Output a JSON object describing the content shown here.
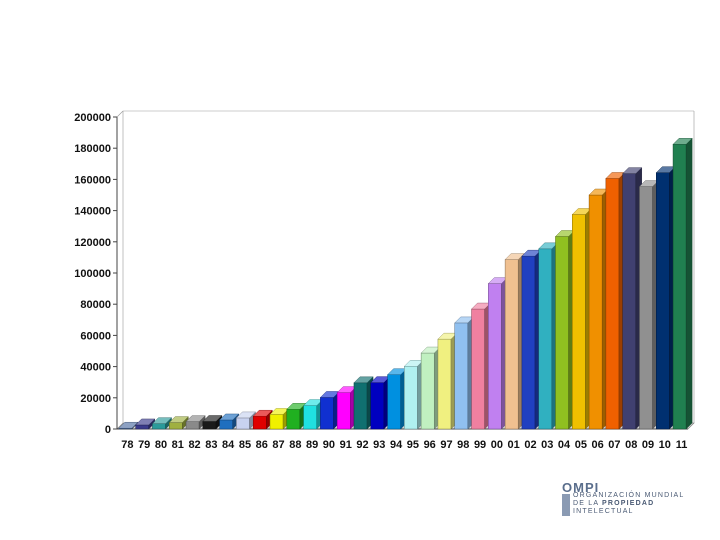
{
  "chart_data": {
    "type": "bar",
    "title": "",
    "xlabel": "",
    "ylabel": "",
    "ylim": [
      0,
      200000
    ],
    "yticks": [
      0,
      20000,
      40000,
      60000,
      80000,
      100000,
      120000,
      140000,
      160000,
      180000,
      200000
    ],
    "grid": false,
    "legend": "none",
    "categories": [
      "78",
      "79",
      "80",
      "81",
      "82",
      "83",
      "84",
      "85",
      "86",
      "87",
      "88",
      "89",
      "90",
      "91",
      "92",
      "93",
      "94",
      "95",
      "96",
      "97",
      "98",
      "99",
      "00",
      "01",
      "02",
      "03",
      "04",
      "05",
      "06",
      "07",
      "08",
      "09",
      "10",
      "11"
    ],
    "values": [
      500,
      2600,
      3400,
      4100,
      4700,
      4800,
      5800,
      7100,
      8200,
      9300,
      12600,
      15000,
      20200,
      23300,
      29600,
      29700,
      34800,
      40200,
      48700,
      57600,
      68000,
      76900,
      93200,
      108600,
      110800,
      115500,
      123400,
      137500,
      150000,
      160600,
      163700,
      155400,
      164300,
      182500
    ],
    "colors": [
      "#4f6fa3",
      "#3a3a8c",
      "#2a9a9a",
      "#a0b040",
      "#8a8a8a",
      "#1a1a1a",
      "#1f6fbf",
      "#c8d2f0",
      "#e00000",
      "#f0f000",
      "#20b020",
      "#20e0e0",
      "#1030d0",
      "#ff00ff",
      "#107070",
      "#0000c0",
      "#0090e0",
      "#b0f0f0",
      "#c0f0c0",
      "#f0f080",
      "#90c0f0",
      "#f080a0",
      "#c080f0",
      "#f0c090",
      "#2040c0",
      "#30b0c0",
      "#90c020",
      "#f0c000",
      "#f09000",
      "#f06000",
      "#404070",
      "#909090",
      "#003070",
      "#208050"
    ]
  },
  "logo": {
    "name": "OMPI",
    "line1": "ORGANIZACIÓN MUNDIAL",
    "line2_prefix": "DE LA ",
    "line2_bold": "PROPIEDAD",
    "line3": "INTELECTUAL"
  }
}
